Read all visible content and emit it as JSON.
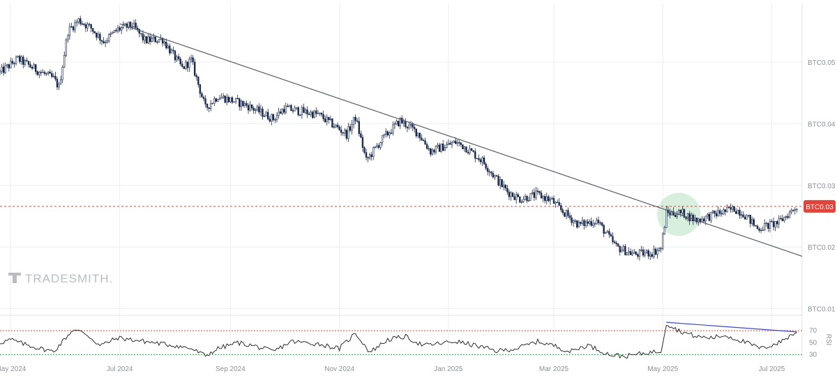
{
  "watermark": "TRADESMITH.",
  "colors": {
    "candle_up": "#ffffff",
    "candle_down": "#1b2a4a",
    "candle_outline": "#1b2a4a",
    "trendline": "#555a62",
    "price_line": "#e0443a",
    "price_badge": "#e0443a",
    "highlight": "#8fd19e",
    "rsi_line": "#2b2b2b",
    "rsi_upper": "#e0443a",
    "rsi_lower": "#2fa84f",
    "divergence": "#3949c8",
    "grid": "#eceef1"
  },
  "chart_data": [
    {
      "type": "candlestick",
      "price_axis_labels": [
        "BTC0.05",
        "BTC0.04",
        "BTC0.03",
        "BTC0.02",
        "BTC0.01"
      ],
      "price_axis_values": [
        0.05,
        0.04,
        0.03,
        0.02,
        0.01
      ],
      "x_axis_labels": [
        "May 2024",
        "Jul 2024",
        "Sep 2024",
        "Nov 2024",
        "Jan 2025",
        "Mar 2025",
        "May 2025",
        "Jul 2025"
      ],
      "x_axis_dates": [
        "2024-05-01",
        "2024-07-01",
        "2024-09-01",
        "2024-11-01",
        "2025-01-01",
        "2025-03-01",
        "2025-05-01",
        "2025-07-01"
      ],
      "x_range": [
        "2024-04-25",
        "2025-07-18"
      ],
      "y_range": [
        0.0095,
        0.0595
      ],
      "current_price_label": "BTC0.03",
      "current_price": 0.0266,
      "price_path": [
        [
          "2024-04-25",
          0.0483
        ],
        [
          "2024-05-05",
          0.0505
        ],
        [
          "2024-05-15",
          0.0488
        ],
        [
          "2024-05-25",
          0.0473
        ],
        [
          "2024-05-28",
          0.0459
        ],
        [
          "2024-06-02",
          0.055
        ],
        [
          "2024-06-08",
          0.0568
        ],
        [
          "2024-06-15",
          0.0555
        ],
        [
          "2024-06-22",
          0.0533
        ],
        [
          "2024-06-30",
          0.0553
        ],
        [
          "2024-07-08",
          0.056
        ],
        [
          "2024-07-15",
          0.0535
        ],
        [
          "2024-07-25",
          0.0537
        ],
        [
          "2024-08-05",
          0.049
        ],
        [
          "2024-08-10",
          0.0503
        ],
        [
          "2024-08-18",
          0.0425
        ],
        [
          "2024-08-25",
          0.0445
        ],
        [
          "2024-09-10",
          0.043
        ],
        [
          "2024-09-25",
          0.0408
        ],
        [
          "2024-10-01",
          0.0425
        ],
        [
          "2024-10-20",
          0.0415
        ],
        [
          "2024-11-05",
          0.0383
        ],
        [
          "2024-11-10",
          0.041
        ],
        [
          "2024-11-16",
          0.034
        ],
        [
          "2024-11-25",
          0.0375
        ],
        [
          "2024-12-05",
          0.0405
        ],
        [
          "2024-12-15",
          0.0385
        ],
        [
          "2024-12-22",
          0.0355
        ],
        [
          "2025-01-05",
          0.037
        ],
        [
          "2025-01-10",
          0.0363
        ],
        [
          "2025-01-20",
          0.034
        ],
        [
          "2025-01-28",
          0.031
        ],
        [
          "2025-02-03",
          0.029
        ],
        [
          "2025-02-10",
          0.0278
        ],
        [
          "2025-02-20",
          0.0285
        ],
        [
          "2025-02-28",
          0.0275
        ],
        [
          "2025-03-05",
          0.026
        ],
        [
          "2025-03-15",
          0.0236
        ],
        [
          "2025-03-25",
          0.0243
        ],
        [
          "2025-04-05",
          0.02
        ],
        [
          "2025-04-15",
          0.0188
        ],
        [
          "2025-04-25",
          0.0191
        ],
        [
          "2025-04-30",
          0.0198
        ],
        [
          "2025-05-03",
          0.0255
        ],
        [
          "2025-05-12",
          0.0255
        ],
        [
          "2025-05-20",
          0.0243
        ],
        [
          "2025-05-30",
          0.0253
        ],
        [
          "2025-06-10",
          0.0262
        ],
        [
          "2025-06-15",
          0.0255
        ],
        [
          "2025-06-23",
          0.023
        ],
        [
          "2025-07-05",
          0.024
        ],
        [
          "2025-07-15",
          0.0266
        ]
      ],
      "trendline": [
        [
          "2024-07-01",
          0.0562
        ],
        [
          "2025-07-18",
          0.0185
        ]
      ],
      "support_level": 0.0266,
      "highlight_zone": {
        "date": "2025-05-10",
        "price": 0.0253
      }
    },
    {
      "type": "line",
      "name": "RSI",
      "ylabel": "RSI",
      "tick_labels": [
        "70",
        "50",
        "30"
      ],
      "tick_values": [
        70,
        50,
        30
      ],
      "y_range": [
        20,
        90
      ],
      "upper_level": 70,
      "lower_level": 30,
      "path": [
        [
          "2024-04-25",
          50
        ],
        [
          "2024-05-01",
          55
        ],
        [
          "2024-05-08",
          48
        ],
        [
          "2024-05-15",
          42
        ],
        [
          "2024-05-25",
          35
        ],
        [
          "2024-06-02",
          62
        ],
        [
          "2024-06-05",
          72
        ],
        [
          "2024-06-12",
          65
        ],
        [
          "2024-06-20",
          45
        ],
        [
          "2024-06-30",
          58
        ],
        [
          "2024-07-10",
          54
        ],
        [
          "2024-07-20",
          50
        ],
        [
          "2024-08-01",
          45
        ],
        [
          "2024-08-10",
          40
        ],
        [
          "2024-08-18",
          28
        ],
        [
          "2024-08-25",
          40
        ],
        [
          "2024-09-05",
          50
        ],
        [
          "2024-09-15",
          44
        ],
        [
          "2024-09-25",
          35
        ],
        [
          "2024-10-05",
          52
        ],
        [
          "2024-10-20",
          48
        ],
        [
          "2024-11-01",
          40
        ],
        [
          "2024-11-10",
          66
        ],
        [
          "2024-11-18",
          34
        ],
        [
          "2024-11-28",
          55
        ],
        [
          "2024-12-08",
          60
        ],
        [
          "2024-12-18",
          45
        ],
        [
          "2025-01-05",
          52
        ],
        [
          "2025-01-15",
          46
        ],
        [
          "2025-01-28",
          36
        ],
        [
          "2025-02-08",
          40
        ],
        [
          "2025-02-20",
          52
        ],
        [
          "2025-03-01",
          45
        ],
        [
          "2025-03-10",
          35
        ],
        [
          "2025-03-20",
          46
        ],
        [
          "2025-04-01",
          30
        ],
        [
          "2025-04-10",
          27
        ],
        [
          "2025-04-20",
          32
        ],
        [
          "2025-04-30",
          36
        ],
        [
          "2025-05-03",
          82
        ],
        [
          "2025-05-10",
          70
        ],
        [
          "2025-05-20",
          60
        ],
        [
          "2025-05-28",
          58
        ],
        [
          "2025-06-05",
          62
        ],
        [
          "2025-06-15",
          52
        ],
        [
          "2025-06-25",
          40
        ],
        [
          "2025-07-05",
          50
        ],
        [
          "2025-07-15",
          68
        ]
      ],
      "divergence_line": [
        [
          "2025-05-03",
          84
        ],
        [
          "2025-07-15",
          68
        ]
      ]
    }
  ]
}
